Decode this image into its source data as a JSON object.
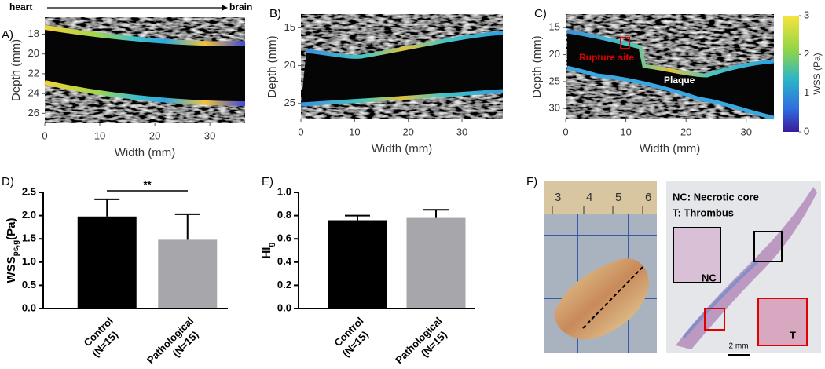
{
  "chart_data": [
    {
      "type": "image",
      "label": "A)",
      "annotations": [
        "heart",
        "brain"
      ],
      "xlabel": "Width (mm)",
      "ylabel": "Depth (mm)",
      "xlim": [
        0,
        36.4
      ],
      "xticks": [
        0,
        10,
        20,
        30
      ],
      "ylim": [
        16.3,
        27.0
      ],
      "yticks": [
        18,
        20,
        22,
        24,
        26
      ],
      "y_inverted": true
    },
    {
      "type": "image",
      "label": "B)",
      "xlabel": "Width (mm)",
      "ylabel": "Depth (mm)",
      "xlim": [
        0,
        37.6
      ],
      "xticks": [
        0,
        10,
        20,
        30
      ],
      "ylim": [
        13.2,
        27.1
      ],
      "yticks": [
        15,
        20,
        25
      ],
      "y_inverted": true
    },
    {
      "type": "image",
      "label": "C)",
      "annotations": [
        "Rupture site",
        "Plaque"
      ],
      "xlabel": "Width (mm)",
      "ylabel": "Depth (mm)",
      "xlim": [
        0,
        34.6
      ],
      "xticks": [
        0,
        10,
        20,
        30
      ],
      "ylim": [
        12.5,
        32.0
      ],
      "yticks": [
        15,
        20,
        25,
        30
      ],
      "y_inverted": true,
      "colorbar": {
        "label": "WSS (Pa)",
        "lim": [
          0,
          3
        ],
        "ticks": [
          0,
          1,
          2,
          3
        ]
      }
    },
    {
      "type": "bar",
      "label": "D)",
      "categories": [
        [
          "Control",
          "(N=15)"
        ],
        [
          "Pathological",
          "(N=15)"
        ]
      ],
      "values": [
        1.98,
        1.48
      ],
      "errors": [
        0.37,
        0.55
      ],
      "colors": [
        "#000000",
        "#a6a6ab"
      ],
      "ylabel": {
        "main": "WSS",
        "sub": "ps,g",
        "unit": "(Pa)"
      },
      "significance": "**",
      "ylim": [
        0,
        2.5
      ],
      "yticks": [
        {
          "value": 0,
          "label": "0.0"
        },
        {
          "value": 0.5,
          "label": "0.5"
        },
        {
          "value": 1,
          "label": "1.0"
        },
        {
          "value": 1.5,
          "label": "1.5"
        },
        {
          "value": 2,
          "label": "2.0"
        },
        {
          "value": 2.5,
          "label": "2.5"
        }
      ]
    },
    {
      "type": "bar",
      "label": "E)",
      "categories": [
        [
          "Control",
          "(N=15)"
        ],
        [
          "Pathological",
          "(N=15)"
        ]
      ],
      "values": [
        0.76,
        0.78
      ],
      "errors": [
        0.04,
        0.07
      ],
      "colors": [
        "#000000",
        "#a6a6ab"
      ],
      "ylabel": {
        "main": "HI",
        "sub": "g"
      },
      "ylim": [
        0,
        1.0
      ],
      "yticks": [
        {
          "value": 0,
          "label": "0.0"
        },
        {
          "value": 0.2,
          "label": "0.2"
        },
        {
          "value": 0.4,
          "label": "0.4"
        },
        {
          "value": 0.6,
          "label": "0.6"
        },
        {
          "value": 0.8,
          "label": "0.8"
        },
        {
          "value": 1,
          "label": "1.0"
        }
      ]
    }
  ],
  "figure_f": {
    "label": "F)",
    "ruler": [
      "3",
      "4",
      "5",
      "6"
    ],
    "legend": [
      "NC: Necrotic core",
      "T: Thrombus"
    ],
    "box_labels": [
      "NC",
      "T"
    ],
    "scale_bar": "2 mm"
  }
}
